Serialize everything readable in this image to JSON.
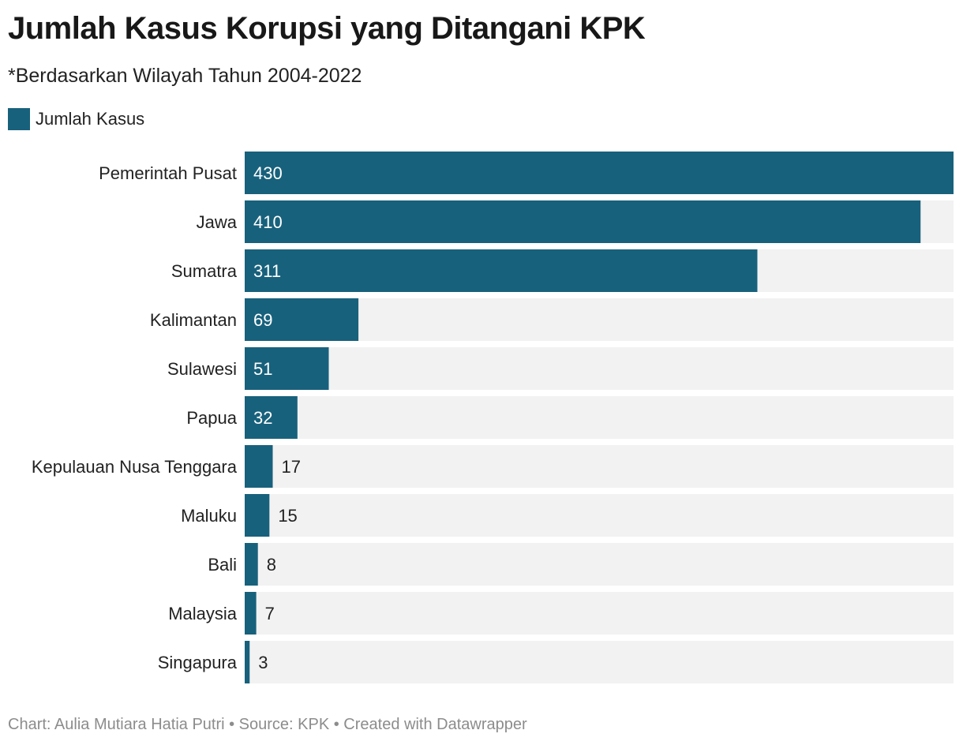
{
  "header": {
    "title": "Jumlah Kasus Korupsi yang Ditangani KPK",
    "subtitle": "*Berdasarkan Wilayah Tahun 2004-2022"
  },
  "legend": {
    "label": "Jumlah Kasus"
  },
  "colors": {
    "bar": "#18617c",
    "track": "#f2f2f2",
    "label_inside": "#ffffff",
    "label_outside": "#222222"
  },
  "footer": {
    "credit": "Chart: Aulia Mutiara Hatia Putri • Source: KPK • Created with Datawrapper"
  },
  "chart_data": {
    "type": "bar",
    "orientation": "horizontal",
    "title": "Jumlah Kasus Korupsi yang Ditangani KPK",
    "subtitle": "*Berdasarkan Wilayah Tahun 2004-2022",
    "categories": [
      "Pemerintah Pusat",
      "Jawa",
      "Sumatra",
      "Kalimantan",
      "Sulawesi",
      "Papua",
      "Kepulauan Nusa Tenggara",
      "Maluku",
      "Bali",
      "Malaysia",
      "Singapura"
    ],
    "series": [
      {
        "name": "Jumlah Kasus",
        "values": [
          430,
          410,
          311,
          69,
          51,
          32,
          17,
          15,
          8,
          7,
          3
        ]
      }
    ],
    "xlim": [
      0,
      430
    ],
    "grid": false,
    "legend_position": "top-left",
    "data_labels": true
  }
}
